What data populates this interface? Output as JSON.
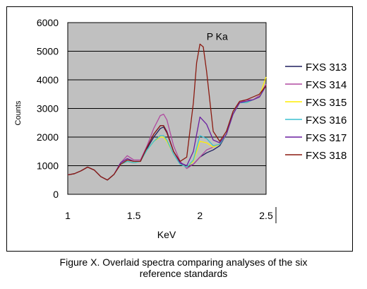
{
  "chart_data": {
    "type": "line",
    "title": "",
    "xlabel": "KeV",
    "ylabel": "Counts",
    "xlim": [
      1,
      2.5
    ],
    "ylim": [
      0,
      6000
    ],
    "xticks": [
      1,
      1.5,
      2,
      2.5
    ],
    "xtick_labels": [
      "1",
      "1.5",
      "2",
      "2.5"
    ],
    "yticks": [
      0,
      1000,
      2000,
      3000,
      4000,
      5000,
      6000
    ],
    "ytick_labels": [
      "0",
      "1000",
      "2000",
      "3000",
      "4000",
      "5000",
      "6000"
    ],
    "grid": "horizontal",
    "plot_background": "#c0c0c0",
    "legend_position": "right",
    "annotations": [
      {
        "text": "P Ka",
        "x": 2.05,
        "y": 5250
      }
    ],
    "series": [
      {
        "name": "FXS 313",
        "color": "#1f1f5f",
        "x": [
          1,
          1.05,
          1.1,
          1.15,
          1.2,
          1.25,
          1.3,
          1.35,
          1.4,
          1.45,
          1.5,
          1.55,
          1.6,
          1.65,
          1.7,
          1.725,
          1.75,
          1.8,
          1.85,
          1.9,
          1.95,
          2,
          2.05,
          2.1,
          2.15,
          2.2,
          2.25,
          2.3,
          2.35,
          2.4,
          2.45,
          2.5
        ],
        "y": [
          680,
          720,
          820,
          950,
          850,
          620,
          500,
          700,
          1050,
          1150,
          1100,
          1150,
          1600,
          2000,
          2300,
          2350,
          2150,
          1500,
          1100,
          950,
          1050,
          1300,
          1450,
          1550,
          1700,
          2100,
          2800,
          3200,
          3200,
          3300,
          3400,
          3800
        ]
      },
      {
        "name": "FXS 314",
        "color": "#b04aa0",
        "x": [
          1,
          1.05,
          1.1,
          1.15,
          1.2,
          1.25,
          1.3,
          1.35,
          1.4,
          1.45,
          1.5,
          1.55,
          1.6,
          1.65,
          1.7,
          1.725,
          1.75,
          1.8,
          1.85,
          1.9,
          1.95,
          2,
          2.05,
          2.1,
          2.15,
          2.2,
          2.25,
          2.3,
          2.35,
          2.4,
          2.45,
          2.5
        ],
        "y": [
          680,
          720,
          820,
          950,
          850,
          620,
          500,
          700,
          1100,
          1350,
          1200,
          1200,
          1700,
          2300,
          2750,
          2800,
          2600,
          1700,
          1150,
          900,
          1050,
          1300,
          1550,
          1650,
          1750,
          2100,
          2800,
          3200,
          3300,
          3300,
          3450,
          3850
        ]
      },
      {
        "name": "FXS 315",
        "color": "#ffee00",
        "x": [
          1,
          1.05,
          1.1,
          1.15,
          1.2,
          1.25,
          1.3,
          1.35,
          1.4,
          1.45,
          1.5,
          1.55,
          1.6,
          1.65,
          1.7,
          1.725,
          1.75,
          1.8,
          1.85,
          1.9,
          1.95,
          2,
          2.05,
          2.1,
          2.15,
          2.2,
          2.25,
          2.3,
          2.35,
          2.4,
          2.45,
          2.5
        ],
        "y": [
          680,
          720,
          820,
          950,
          850,
          620,
          500,
          700,
          1050,
          1150,
          1100,
          1150,
          1550,
          1850,
          2000,
          2000,
          1850,
          1400,
          1050,
          950,
          1150,
          1850,
          1800,
          1650,
          1750,
          2100,
          2800,
          3200,
          3200,
          3300,
          3400,
          4100
        ]
      },
      {
        "name": "FXS 316",
        "color": "#3cc0d0",
        "x": [
          1,
          1.05,
          1.1,
          1.15,
          1.2,
          1.25,
          1.3,
          1.35,
          1.4,
          1.45,
          1.5,
          1.55,
          1.6,
          1.65,
          1.7,
          1.725,
          1.75,
          1.8,
          1.85,
          1.9,
          1.95,
          2,
          2.05,
          2.1,
          2.15,
          2.2,
          2.25,
          2.3,
          2.35,
          2.4,
          2.45,
          2.5
        ],
        "y": [
          680,
          720,
          820,
          950,
          850,
          620,
          500,
          700,
          1050,
          1150,
          1100,
          1150,
          1550,
          1850,
          2050,
          2050,
          1900,
          1400,
          1050,
          950,
          1200,
          2050,
          1950,
          1700,
          1750,
          2100,
          2800,
          3200,
          3200,
          3300,
          3400,
          3800
        ]
      },
      {
        "name": "FXS 317",
        "color": "#6a1fa0",
        "x": [
          1,
          1.05,
          1.1,
          1.15,
          1.2,
          1.25,
          1.3,
          1.35,
          1.4,
          1.45,
          1.5,
          1.55,
          1.6,
          1.65,
          1.7,
          1.725,
          1.75,
          1.8,
          1.85,
          1.9,
          1.95,
          2,
          2.05,
          2.1,
          2.15,
          2.2,
          2.25,
          2.3,
          2.35,
          2.4,
          2.45,
          2.5
        ],
        "y": [
          680,
          720,
          820,
          950,
          850,
          620,
          500,
          700,
          1100,
          1250,
          1150,
          1150,
          1650,
          2100,
          2400,
          2400,
          2200,
          1500,
          1100,
          1000,
          1500,
          2700,
          2450,
          1900,
          1800,
          2100,
          2800,
          3200,
          3250,
          3300,
          3400,
          3800
        ]
      },
      {
        "name": "FXS 318",
        "color": "#8b1a10",
        "x": [
          1,
          1.05,
          1.1,
          1.15,
          1.2,
          1.25,
          1.3,
          1.35,
          1.4,
          1.45,
          1.5,
          1.55,
          1.6,
          1.65,
          1.7,
          1.725,
          1.75,
          1.8,
          1.85,
          1.9,
          1.95,
          1.975,
          2,
          2.025,
          2.05,
          2.1,
          2.15,
          2.2,
          2.25,
          2.3,
          2.35,
          2.4,
          2.45,
          2.5
        ],
        "y": [
          680,
          720,
          820,
          950,
          850,
          620,
          500,
          700,
          1050,
          1200,
          1150,
          1150,
          1650,
          2100,
          2400,
          2400,
          2150,
          1500,
          1150,
          1300,
          3200,
          4600,
          5250,
          5150,
          4300,
          2200,
          1850,
          2200,
          2900,
          3250,
          3300,
          3400,
          3500,
          3800
        ]
      }
    ]
  },
  "caption": {
    "line1": "Figure X. Overlaid spectra comparing analyses of the six",
    "line2": "reference standards"
  }
}
